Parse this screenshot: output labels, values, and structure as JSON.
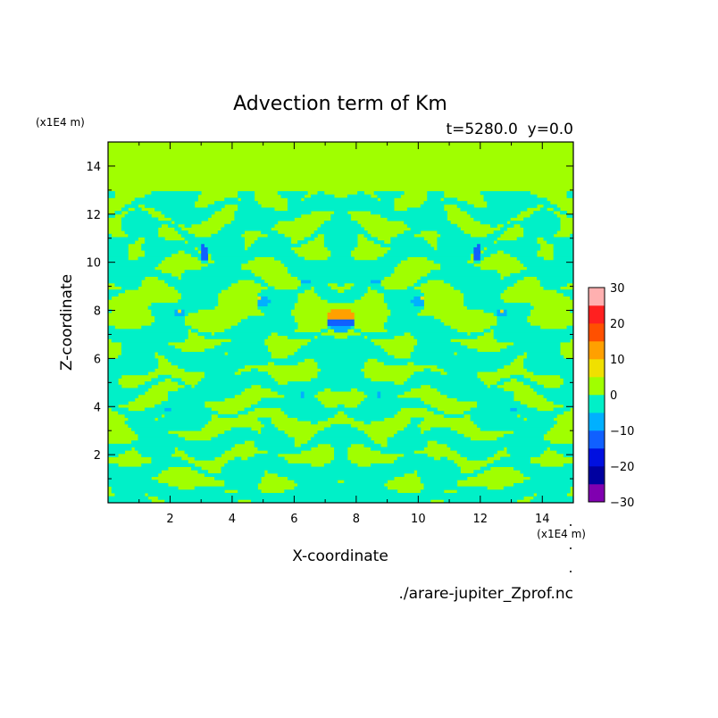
{
  "chart_data": {
    "type": "heatmap",
    "title": "Advection term of Km",
    "subtitle": "t=5280.0  y=0.0",
    "xlabel": "X-coordinate",
    "ylabel": "Z-coordinate",
    "x_unit": "(x1E4 m)",
    "y_unit": "(x1E4 m)",
    "source": "./arare-jupiter_Zprof.nc",
    "xlim": [
      0,
      15
    ],
    "ylim": [
      0,
      15
    ],
    "x_ticks": [
      2,
      4,
      6,
      8,
      10,
      12,
      14
    ],
    "y_ticks": [
      2,
      4,
      6,
      8,
      10,
      12,
      14
    ],
    "x_tick_labels": [
      "2",
      "4",
      "6",
      "8",
      "10",
      "12",
      "14"
    ],
    "y_tick_labels": [
      "2",
      "4",
      "6",
      "8",
      "10",
      "12",
      "14"
    ],
    "background_value_color": "#a0ff00",
    "colorbar": {
      "levels": [
        -30,
        -25,
        -20,
        -15,
        -10,
        -5,
        0,
        5,
        10,
        15,
        20,
        25,
        30
      ],
      "colors": [
        "#8000b0",
        "#0000a0",
        "#0010e0",
        "#1060ff",
        "#00b0ff",
        "#00f0c8",
        "#a0ff00",
        "#f0e000",
        "#ffa000",
        "#ff5000",
        "#ff2020",
        "#ffb0b0"
      ],
      "labels": [
        {
          "value": 30,
          "text": "30"
        },
        {
          "value": 20,
          "text": "20"
        },
        {
          "value": 10,
          "text": "10"
        },
        {
          "value": 0,
          "text": "0"
        },
        {
          "value": -10,
          "text": "−10"
        },
        {
          "value": -20,
          "text": "−20"
        },
        {
          "value": -30,
          "text": "−30"
        }
      ]
    },
    "features": {
      "turbulent_band_z": [
        0,
        13
      ],
      "bands": [
        {
          "z": 12.2,
          "amp": 0.35,
          "w": 0.35,
          "phase": 0.3
        },
        {
          "z": 11.2,
          "amp": 0.45,
          "w": 0.4,
          "phase": 1.4
        },
        {
          "z": 10.2,
          "amp": 0.5,
          "w": 0.45,
          "phase": 2.6
        },
        {
          "z": 9.1,
          "amp": 0.4,
          "w": 0.4,
          "phase": 0.9
        },
        {
          "z": 7.2,
          "amp": 0.3,
          "w": 0.3,
          "phase": 2.1
        },
        {
          "z": 6.2,
          "amp": 0.35,
          "w": 0.4,
          "phase": 0.5
        },
        {
          "z": 4.8,
          "amp": 0.4,
          "w": 0.35,
          "phase": 1.8
        },
        {
          "z": 3.9,
          "amp": 0.3,
          "w": 0.3,
          "phase": 3.0
        },
        {
          "z": 2.5,
          "amp": 0.35,
          "w": 0.45,
          "phase": 1.1
        },
        {
          "z": 1.4,
          "amp": 0.3,
          "w": 0.4,
          "phase": 2.4
        },
        {
          "z": 0.4,
          "amp": 0.25,
          "w": 0.4,
          "phase": 0.2
        }
      ],
      "blobs": [
        {
          "x": 7.5,
          "z": 7.9,
          "value": 22,
          "rx": 0.3,
          "rz": 0.18
        },
        {
          "x": 7.5,
          "z": 7.8,
          "value": 12,
          "rx": 0.45,
          "rz": 0.28
        },
        {
          "x": 7.5,
          "z": 7.5,
          "value": -14,
          "rx": 0.4,
          "rz": 0.2
        },
        {
          "x": 7.5,
          "z": 7.25,
          "value": -8,
          "rx": 0.3,
          "rz": 0.15
        },
        {
          "x": 3.1,
          "z": 10.4,
          "value": -12,
          "rx": 0.12,
          "rz": 0.35
        },
        {
          "x": 11.9,
          "z": 10.4,
          "value": -12,
          "rx": 0.12,
          "rz": 0.35
        },
        {
          "x": 5.0,
          "z": 8.4,
          "value": -9,
          "rx": 0.2,
          "rz": 0.25
        },
        {
          "x": 10.0,
          "z": 8.4,
          "value": -9,
          "rx": 0.2,
          "rz": 0.25
        },
        {
          "x": 4.9,
          "z": 8.5,
          "value": 8,
          "rx": 0.08,
          "rz": 0.1
        },
        {
          "x": 10.1,
          "z": 8.5,
          "value": 8,
          "rx": 0.08,
          "rz": 0.1
        },
        {
          "x": 2.3,
          "z": 7.9,
          "value": -8,
          "rx": 0.18,
          "rz": 0.18
        },
        {
          "x": 12.7,
          "z": 7.9,
          "value": -8,
          "rx": 0.18,
          "rz": 0.18
        },
        {
          "x": 2.35,
          "z": 8.0,
          "value": 8,
          "rx": 0.06,
          "rz": 0.06
        },
        {
          "x": 12.65,
          "z": 8.0,
          "value": 8,
          "rx": 0.06,
          "rz": 0.06
        },
        {
          "x": 3.4,
          "z": 9.0,
          "value": 6,
          "rx": 0.06,
          "rz": 0.06
        },
        {
          "x": 11.6,
          "z": 9.0,
          "value": 6,
          "rx": 0.06,
          "rz": 0.06
        },
        {
          "x": 6.4,
          "z": 9.2,
          "value": -6,
          "rx": 0.15,
          "rz": 0.12
        },
        {
          "x": 8.6,
          "z": 9.2,
          "value": -6,
          "rx": 0.15,
          "rz": 0.12
        },
        {
          "x": 6.3,
          "z": 4.5,
          "value": -7,
          "rx": 0.12,
          "rz": 0.08
        },
        {
          "x": 8.7,
          "z": 4.5,
          "value": -7,
          "rx": 0.12,
          "rz": 0.08
        },
        {
          "x": 1.9,
          "z": 3.9,
          "value": -6,
          "rx": 0.12,
          "rz": 0.08
        },
        {
          "x": 13.1,
          "z": 3.9,
          "value": -6,
          "rx": 0.12,
          "rz": 0.08
        }
      ]
    }
  }
}
